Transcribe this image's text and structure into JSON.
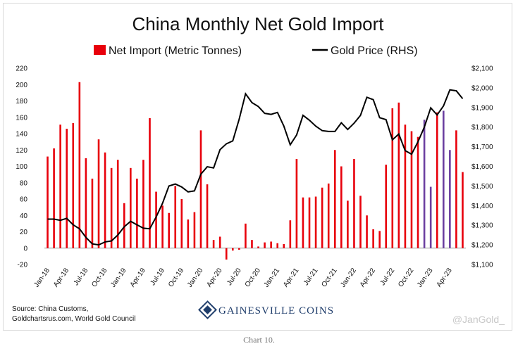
{
  "caption": "Chart 10.",
  "source_lines": [
    "Source: China Customs,",
    "Goldchartsrus.com, World Gold Council"
  ],
  "brand": "GAINESVILLE COINS",
  "watermark": "@JanGold_",
  "colors": {
    "bar_red": "#e8000b",
    "bar_purple": "#6b3fa0",
    "line": "#000000",
    "brand": "#1f3d6b"
  },
  "chart_data": {
    "type": "bar+line",
    "title": "China Monthly Net Gold Import",
    "legend": {
      "bars": "Net Import (Metric Tonnes)",
      "line": "Gold Price (RHS)",
      "placement": "top"
    },
    "y_left": {
      "min": -20,
      "max": 220,
      "step": 20,
      "ticks": [
        "-20",
        "0",
        "20",
        "40",
        "60",
        "80",
        "100",
        "120",
        "140",
        "160",
        "180",
        "200",
        "220"
      ]
    },
    "y_right": {
      "min": 1100,
      "max": 2100,
      "ticks": [
        "$1,100",
        "$1,200",
        "$1,300",
        "$1,400",
        "$1,500",
        "$1,600",
        "$1,700",
        "$1,800",
        "$1,900",
        "$2,000",
        "$2,100"
      ]
    },
    "x_tick_labels": [
      "Jan-18",
      "Apr-18",
      "Jul-18",
      "Oct-18",
      "Jan-19",
      "Apr-19",
      "Jul-19",
      "Oct-19",
      "Jan-20",
      "Apr-20",
      "Jul-20",
      "Oct-20",
      "Jan-21",
      "Apr-21",
      "Jul-21",
      "Oct-21",
      "Jan-22",
      "Apr-22",
      "Jul-22",
      "Oct-22",
      "Jan-23",
      "Apr-23"
    ],
    "x_tick_every": 3,
    "months": 66,
    "series": [
      {
        "name": "Net Import (Metric Tonnes)",
        "kind": "bar",
        "values": [
          112,
          122,
          151,
          146,
          153,
          203,
          110,
          85,
          133,
          117,
          98,
          108,
          55,
          98,
          85,
          108,
          159,
          69,
          52,
          43,
          76,
          60,
          35,
          44,
          144,
          78,
          10,
          14,
          -14,
          -3,
          -2,
          30,
          10,
          2,
          7,
          8,
          6,
          5,
          34,
          109,
          62,
          62,
          63,
          74,
          79,
          120,
          100,
          58,
          109,
          64,
          40,
          23,
          21,
          102,
          171,
          178,
          151,
          143,
          136,
          157,
          75,
          166,
          168,
          120,
          144,
          93
        ],
        "purple_months": [
          59,
          60,
          62,
          63
        ]
      },
      {
        "name": "Gold Price (RHS)",
        "kind": "line",
        "values": [
          1331,
          1331,
          1325,
          1335,
          1302,
          1282,
          1238,
          1205,
          1200,
          1215,
          1220,
          1250,
          1292,
          1320,
          1302,
          1285,
          1282,
          1342,
          1412,
          1500,
          1510,
          1495,
          1470,
          1475,
          1560,
          1598,
          1592,
          1685,
          1715,
          1730,
          1840,
          1970,
          1925,
          1905,
          1870,
          1865,
          1875,
          1805,
          1710,
          1760,
          1860,
          1835,
          1805,
          1782,
          1778,
          1778,
          1822,
          1788,
          1820,
          1860,
          1952,
          1940,
          1848,
          1838,
          1735,
          1765,
          1680,
          1662,
          1725,
          1800,
          1898,
          1862,
          1908,
          1990,
          1985,
          1945
        ]
      }
    ]
  }
}
